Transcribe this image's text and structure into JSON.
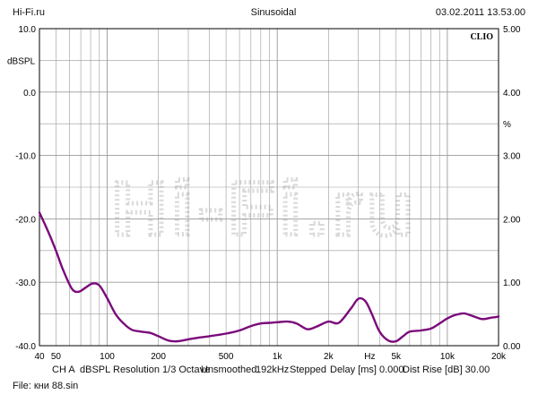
{
  "header": {
    "left": "Hi-Fi.ru",
    "center": "Sinusoidal",
    "right": "03.02.2011 13.53.00"
  },
  "brand": {
    "label": "CLIO"
  },
  "watermark": {
    "text": "Hi-Fi.ru"
  },
  "footer": {
    "channel": "CH A",
    "unit": "dBSPL",
    "resolution": "Resolution 1/3 Octave",
    "smoothing": "Unsmoothed",
    "rate": "192kHz",
    "mode": "Stepped",
    "delay": "Delay [ms] 0.000",
    "dist_rise": "Dist Rise [dB] 30.00",
    "file": "File: кни 88.sin"
  },
  "colors": {
    "curve": "#7b0a7b",
    "grid": "#9a9a9a",
    "frame": "#000000",
    "watermark": "#d9d9d9"
  },
  "chart_data": {
    "type": "line",
    "x_scale": "log",
    "xlim": [
      40,
      20000
    ],
    "ylim": [
      -40,
      10
    ],
    "y2lim": [
      0,
      5
    ],
    "ylabel": "dBSPL",
    "y2label": "%",
    "x_tick_labels": [
      {
        "v": 40,
        "t": "40"
      },
      {
        "v": 50,
        "t": "50"
      },
      {
        "v": 100,
        "t": "100"
      },
      {
        "v": 200,
        "t": "200"
      },
      {
        "v": 500,
        "t": "500"
      },
      {
        "v": 1000,
        "t": "1k"
      },
      {
        "v": 2000,
        "t": "2k"
      },
      {
        "v": 3500,
        "t": "Hz"
      },
      {
        "v": 5000,
        "t": "5k"
      },
      {
        "v": 10000,
        "t": "10k"
      },
      {
        "v": 20000,
        "t": "20k"
      }
    ],
    "y_tick_labels": [
      "10.0",
      "0.0",
      "-10.0",
      "-20.0",
      "-30.0",
      "-40.0"
    ],
    "y_tick_values": [
      10,
      0,
      -10,
      -20,
      -30,
      -40
    ],
    "y2_tick_labels": [
      "5.00",
      "4.00",
      "3.00",
      "2.00",
      "1.00",
      "0.00"
    ],
    "y2_tick_values": [
      5,
      4,
      3,
      2,
      1,
      0
    ],
    "grid": true,
    "series": [
      {
        "x": [
          40,
          45,
          50,
          55,
          62,
          68,
          75,
          82,
          90,
          100,
          112,
          125,
          140,
          160,
          180,
          200,
          230,
          260,
          300,
          350,
          400,
          500,
          600,
          700,
          800,
          900,
          1000,
          1150,
          1300,
          1500,
          1700,
          2000,
          2300,
          2700,
          3000,
          3300,
          3600,
          4000,
          4500,
          5000,
          5500,
          6000,
          7000,
          8000,
          9000,
          10000,
          11000,
          12500,
          14000,
          16000,
          18000,
          20000
        ],
        "y": [
          -19,
          -22,
          -25,
          -28,
          -31,
          -31.5,
          -30.8,
          -30.2,
          -30.5,
          -32.5,
          -35,
          -36.5,
          -37.5,
          -37.8,
          -38,
          -38.5,
          -39.2,
          -39.3,
          -39,
          -38.7,
          -38.5,
          -38.1,
          -37.6,
          -36.9,
          -36.5,
          -36.4,
          -36.3,
          -36.2,
          -36.5,
          -37.4,
          -37,
          -36.2,
          -36.4,
          -34.2,
          -32.6,
          -33,
          -35,
          -37.8,
          -39.2,
          -39.3,
          -38.5,
          -37.8,
          -37.6,
          -37.3,
          -36.5,
          -35.7,
          -35.2,
          -34.9,
          -35.3,
          -35.8,
          -35.6,
          -35.4
        ]
      }
    ]
  }
}
